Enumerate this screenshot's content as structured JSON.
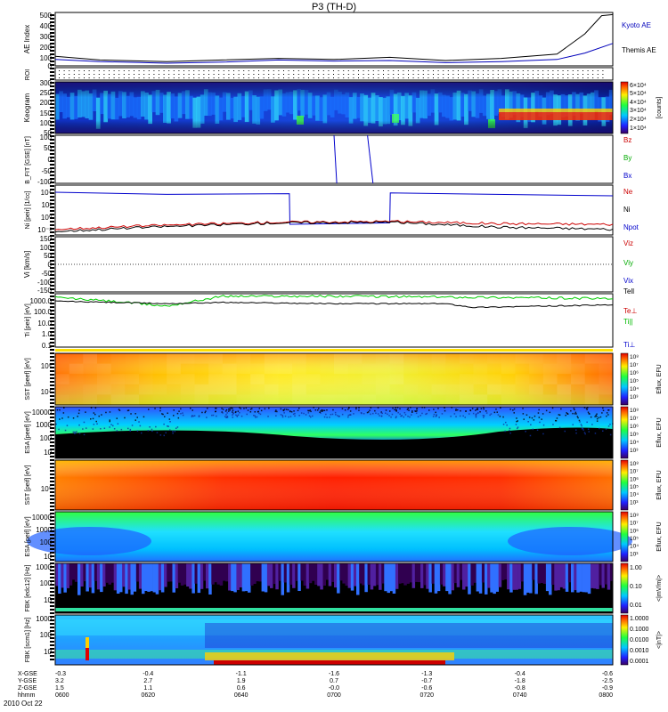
{
  "title": "P3 (TH-D)",
  "chart_data": {
    "type": "multi-panel time series",
    "time_ticks": [
      "0600",
      "0620",
      "0640",
      "0700",
      "0720",
      "0740",
      "0800"
    ],
    "date": "2010 Oct 22",
    "ephemeris": {
      "labels": [
        "X-GSE",
        "Y-GSE",
        "Z-GSE",
        "hhmm"
      ],
      "X-GSE": [
        "-0.3",
        "-0.4",
        "-1.1",
        "-1.6",
        "-1.3",
        "-0.4",
        "-0.6"
      ],
      "Y-GSE": [
        "3.2",
        "2.7",
        "1.9",
        "0.7",
        "-0.7",
        "-1.8",
        "-2.5"
      ],
      "Z-GSE": [
        "1.5",
        "1.1",
        "0.6",
        "-0.0",
        "-0.6",
        "-0.8",
        "-0.9"
      ]
    },
    "panels": [
      {
        "id": "ae",
        "ylabel": "AE Index",
        "yticks": [
          "500",
          "400",
          "300",
          "200",
          "100",
          "0"
        ],
        "ylim": [
          0,
          500
        ],
        "legend": [
          {
            "label": "Kyoto AE",
            "color": "#0000bb"
          },
          {
            "label": "Themis AE",
            "color": "#000000"
          }
        ],
        "series": [
          {
            "name": "Kyoto AE",
            "x": [
              0,
              0.08,
              0.2,
              0.3,
              0.4,
              0.5,
              0.6,
              0.7,
              0.8,
              0.9,
              0.95,
              1
            ],
            "y": [
              60,
              40,
              25,
              35,
              55,
              45,
              50,
              30,
              40,
              60,
              120,
              210
            ]
          },
          {
            "name": "Themis AE",
            "x": [
              0,
              0.08,
              0.2,
              0.3,
              0.4,
              0.5,
              0.6,
              0.7,
              0.8,
              0.9,
              0.95,
              0.98,
              1
            ],
            "y": [
              90,
              55,
              40,
              55,
              70,
              60,
              80,
              50,
              70,
              110,
              300,
              470,
              480
            ]
          }
        ]
      },
      {
        "id": "roi",
        "ylabel": "ROI"
      },
      {
        "id": "keogram",
        "ylabel": "Keogram",
        "yticks": [
          "300",
          "250",
          "200",
          "150",
          "100",
          "50"
        ],
        "ylim": [
          50,
          300
        ],
        "colorbar": {
          "label": "[counts]",
          "ticks": [
            "6×10⁴",
            "5×10⁴",
            "4×10⁴",
            "3×10⁴",
            "2×10⁴",
            "1×10⁴"
          ]
        }
      },
      {
        "id": "bfit",
        "ylabel": "B_FIT [GSE] [nT]",
        "yticks": [
          "100",
          "50",
          "0",
          "-50",
          "-100"
        ],
        "ylim": [
          -100,
          100
        ],
        "legend": [
          {
            "label": "Bz",
            "color": "#cc0000"
          },
          {
            "label": "By",
            "color": "#00aa00"
          },
          {
            "label": "Bx",
            "color": "#0000cc"
          }
        ],
        "series": [
          {
            "name": "Bx",
            "x": [
              0.5,
              0.505
            ],
            "y": [
              100,
              -100
            ]
          },
          {
            "name": "Bx",
            "x": [
              0.56,
              0.57
            ],
            "y": [
              100,
              -100
            ]
          }
        ]
      },
      {
        "id": "ni",
        "ylabel": "Ni [peir] [1/cc]",
        "yticks": [
          "10⁴",
          "10²",
          "10⁰",
          "10⁻²"
        ],
        "legend": [
          {
            "label": "Ne",
            "color": "#cc0000"
          },
          {
            "label": "Ni",
            "color": "#000000"
          },
          {
            "label": "Npot",
            "color": "#0000cc"
          }
        ],
        "series": [
          {
            "name": "Npot",
            "x": [
              0,
              0.2,
              0.42,
              0.421,
              0.6,
              0.601,
              1
            ],
            "y": [
              4.0,
              3.7,
              3.8,
              -0.5,
              -0.3,
              3.9,
              3.5
            ]
          },
          {
            "name": "Ne",
            "x": [
              0,
              0.2,
              0.4,
              0.6,
              0.8,
              1
            ],
            "y": [
              -1.2,
              -0.6,
              -0.2,
              -0.1,
              -0.4,
              -0.5
            ]
          },
          {
            "name": "Ni",
            "x": [
              0,
              0.2,
              0.4,
              0.6,
              0.8,
              1
            ],
            "y": [
              -1.5,
              -0.8,
              -0.3,
              -0.2,
              -0.9,
              -1.2
            ]
          }
        ]
      },
      {
        "id": "vi",
        "ylabel": "Vi [km/s]",
        "yticks": [
          "150",
          "100",
          "50",
          "0",
          "-50",
          "-100",
          "-150"
        ],
        "ylim": [
          -150,
          150
        ],
        "legend": [
          {
            "label": "Viz",
            "color": "#cc0000"
          },
          {
            "label": "Viy",
            "color": "#00aa00"
          },
          {
            "label": "Vix",
            "color": "#0000cc"
          }
        ]
      },
      {
        "id": "ti",
        "ylabel": "Ti [peir] [eV]",
        "yticks": [
          "1000.0",
          "100.0",
          "10.0",
          "1.0",
          "0.1"
        ],
        "legend": [
          {
            "label": "Tell",
            "color": "#000000"
          },
          {
            "label": "Te⊥",
            "color": "#cc0000"
          },
          {
            "label": "Ti||",
            "color": "#00bb00"
          },
          {
            "label": "Ti⊥",
            "color": "#0000cc"
          }
        ],
        "series": [
          {
            "name": "Ti||",
            "x": [
              0,
              0.1,
              0.2,
              0.3,
              0.5,
              0.8,
              1
            ],
            "y": [
              3.0,
              2.7,
              2.3,
              3.1,
              3.1,
              3.0,
              2.9
            ]
          },
          {
            "name": "Tell",
            "x": [
              0,
              0.1,
              0.2,
              0.3,
              0.5,
              0.7,
              0.75,
              1
            ],
            "y": [
              2.7,
              2.6,
              2.5,
              2.6,
              2.5,
              2.5,
              2.2,
              2.4
            ]
          }
        ]
      },
      {
        "id": "sst_e",
        "ylabel": "SST [peef] [eV]",
        "yticks": [
          "10⁵",
          "10⁴"
        ],
        "colorbar": {
          "label": "Eflux, EFU",
          "ticks": [
            "10⁸",
            "10⁷",
            "10⁶",
            "10⁵",
            "10⁴",
            "10³"
          ]
        }
      },
      {
        "id": "esa_e",
        "ylabel": "ESA [peef] [eV]",
        "yticks": [
          "10000",
          "1000",
          "100",
          "10"
        ],
        "colorbar": {
          "label": "Eflux, EFU",
          "ticks": [
            "10⁸",
            "10⁷",
            "10⁶",
            "10⁵",
            "10⁴",
            "10³"
          ]
        }
      },
      {
        "id": "sst_i",
        "ylabel": "SST [peif] [eV]",
        "yticks": [
          "10⁵"
        ],
        "colorbar": {
          "label": "Eflux, EFU",
          "ticks": [
            "10⁸",
            "10⁷",
            "10⁶",
            "10⁵",
            "10⁴",
            "10³"
          ]
        }
      },
      {
        "id": "esa_i",
        "ylabel": "ESA [peif] [eV]",
        "yticks": [
          "10000",
          "1000",
          "100",
          "10"
        ],
        "colorbar": {
          "label": "Eflux, EFU",
          "ticks": [
            "10⁸",
            "10⁷",
            "10⁶",
            "10⁵",
            "10⁴",
            "10³"
          ]
        }
      },
      {
        "id": "fbk1",
        "ylabel": "FBK [edc12] [Hz]",
        "yticks": [
          "1000",
          "100",
          "10"
        ],
        "colorbar": {
          "label": "<|mV/m|>",
          "ticks": [
            "1.00",
            "0.10",
            "0.01"
          ]
        }
      },
      {
        "id": "fbk2",
        "ylabel": "FBK [scm1] [Hz]",
        "yticks": [
          "1000",
          "100",
          "10"
        ],
        "colorbar": {
          "label": "<|nT|>",
          "ticks": [
            "1.0000",
            "0.1000",
            "0.0100",
            "0.0010",
            "0.0001"
          ]
        }
      }
    ]
  }
}
